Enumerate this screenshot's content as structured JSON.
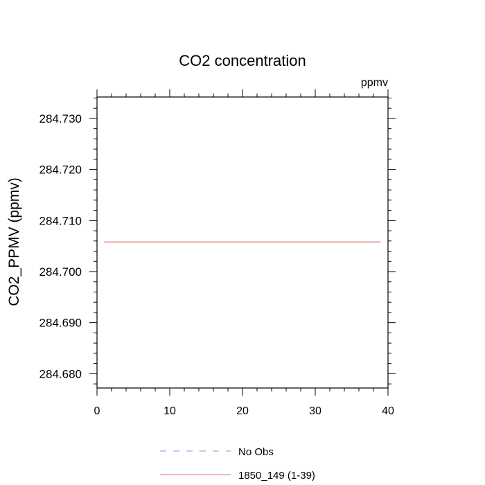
{
  "chart_data": {
    "type": "line",
    "title": "CO2 concentration",
    "units_label": "ppmv",
    "ylabel": "CO2_PPMV  (ppmv)",
    "xlabel": "",
    "xlim": [
      0,
      40
    ],
    "ylim": [
      284.6772,
      284.7342
    ],
    "x_ticks": [
      0,
      10,
      20,
      30,
      40
    ],
    "x_tick_labels": [
      "0",
      "10",
      "20",
      "30",
      "40"
    ],
    "y_ticks": [
      284.68,
      284.69,
      284.7,
      284.71,
      284.72,
      284.73
    ],
    "y_tick_labels": [
      "284.680",
      "284.690",
      "284.700",
      "284.710",
      "284.720",
      "284.730"
    ],
    "grid": false,
    "legend_position": "bottom",
    "series": [
      {
        "name": "No Obs",
        "style": "dashed",
        "color": "#9090e0",
        "x": [],
        "y": []
      },
      {
        "name": "1850_149 (1-39)",
        "style": "solid",
        "color": "#e07070",
        "x": [
          1,
          2,
          3,
          4,
          5,
          6,
          7,
          8,
          9,
          10,
          11,
          12,
          13,
          14,
          15,
          16,
          17,
          18,
          19,
          20,
          21,
          22,
          23,
          24,
          25,
          26,
          27,
          28,
          29,
          30,
          31,
          32,
          33,
          34,
          35,
          36,
          37,
          38,
          39
        ],
        "y": [
          284.7058,
          284.7058,
          284.7058,
          284.7058,
          284.7058,
          284.7058,
          284.7058,
          284.7058,
          284.7058,
          284.7058,
          284.7058,
          284.7058,
          284.7058,
          284.7058,
          284.7058,
          284.7058,
          284.7058,
          284.7058,
          284.7058,
          284.7058,
          284.7058,
          284.7058,
          284.7058,
          284.7058,
          284.7058,
          284.7058,
          284.7058,
          284.7058,
          284.7058,
          284.7058,
          284.7058,
          284.7058,
          284.7058,
          284.7058,
          284.7058,
          284.7058,
          284.7058,
          284.7058,
          284.7058
        ]
      }
    ]
  }
}
